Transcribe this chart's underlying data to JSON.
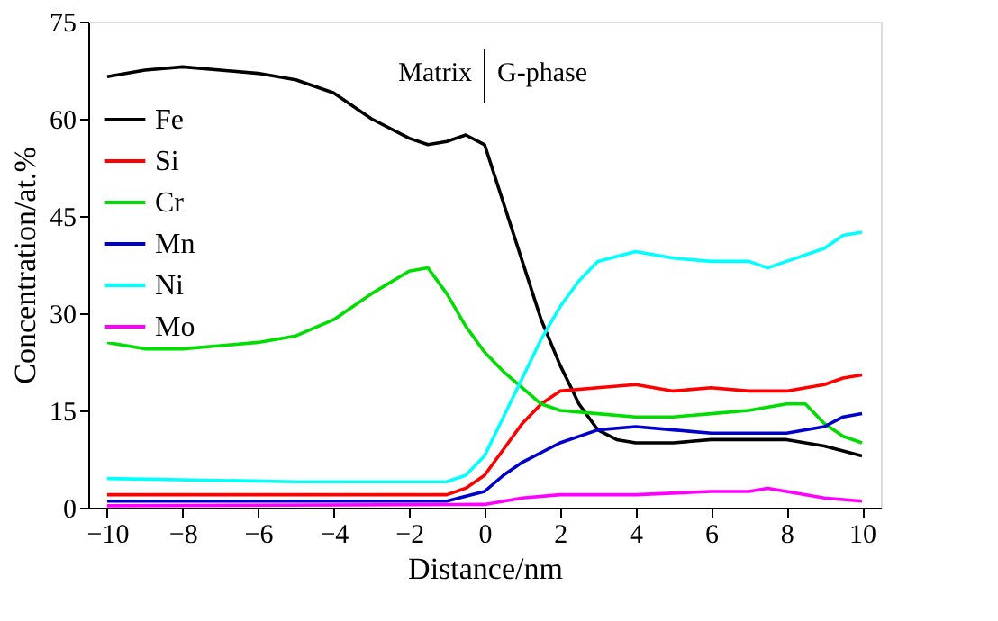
{
  "chart_data": {
    "type": "line",
    "xlabel": "Distance/nm",
    "ylabel": "Concentration/at.%",
    "xlim": [
      -10.5,
      10.5
    ],
    "ylim": [
      0,
      75
    ],
    "xticks": [
      -10,
      -8,
      -6,
      -4,
      -2,
      0,
      2,
      4,
      6,
      8,
      10
    ],
    "yticks": [
      0,
      15,
      30,
      45,
      60,
      75
    ],
    "grid": false,
    "legend": "top left",
    "marker": "none",
    "line_style": "solid",
    "annotations": [
      "Matrix",
      "G-phase"
    ],
    "series": [
      {
        "name": "Fe",
        "color": "#000000",
        "x": [
          -10,
          -9,
          -8,
          -7,
          -6,
          -5,
          -4,
          -3,
          -2,
          -1.5,
          -1,
          -0.5,
          0,
          0.5,
          1,
          1.5,
          2,
          2.5,
          3,
          3.5,
          4,
          5,
          6,
          7,
          8,
          9,
          10
        ],
        "values": [
          66.5,
          67.5,
          68,
          67.5,
          67,
          66,
          64,
          60,
          57,
          56,
          56.5,
          57.5,
          56,
          47,
          38,
          29,
          22,
          16,
          12,
          10.5,
          10,
          10,
          10.5,
          10.5,
          10.5,
          9.5,
          8
        ]
      },
      {
        "name": "Si",
        "color": "#ff0000",
        "x": [
          -10,
          -5,
          -1,
          -0.5,
          0,
          0.5,
          1,
          1.5,
          2,
          3,
          4,
          5,
          6,
          7,
          8,
          9,
          9.5,
          10
        ],
        "values": [
          2,
          2,
          2,
          3,
          5,
          9,
          13,
          16,
          18,
          18.5,
          19,
          18,
          18.5,
          18,
          18,
          19,
          20,
          20.5
        ]
      },
      {
        "name": "Cr",
        "color": "#00dd00",
        "x": [
          -10,
          -9,
          -8,
          -7,
          -6,
          -5,
          -4,
          -3,
          -2,
          -1.5,
          -1,
          -0.5,
          0,
          0.5,
          1,
          1.5,
          2,
          3,
          4,
          5,
          6,
          7,
          8,
          8.5,
          9,
          9.5,
          10
        ],
        "values": [
          25.5,
          24.5,
          24.5,
          25,
          25.5,
          26.5,
          29,
          33,
          36.5,
          37,
          33,
          28,
          24,
          21,
          18.5,
          16,
          15,
          14.5,
          14,
          14,
          14.5,
          15,
          16,
          16,
          13,
          11,
          10
        ]
      },
      {
        "name": "Mn",
        "color": "#0000cc",
        "x": [
          -10,
          -1,
          0,
          0.5,
          1,
          2,
          3,
          4,
          5,
          6,
          7,
          8,
          9,
          9.5,
          10
        ],
        "values": [
          1,
          1,
          2.5,
          5,
          7,
          10,
          12,
          12.5,
          12,
          11.5,
          11.5,
          11.5,
          12.5,
          14,
          14.5
        ]
      },
      {
        "name": "Ni",
        "color": "#00ffff",
        "x": [
          -10,
          -5,
          -1,
          -0.5,
          0,
          0.5,
          1,
          1.5,
          2,
          2.5,
          3,
          4,
          5,
          6,
          7,
          7.5,
          8,
          9,
          9.5,
          10
        ],
        "values": [
          4.5,
          4,
          4,
          5,
          8,
          14,
          20,
          26,
          31,
          35,
          38,
          39.5,
          38.5,
          38,
          38,
          37,
          38,
          40,
          42,
          42.5
        ]
      },
      {
        "name": "Mo",
        "color": "#ff00ff",
        "x": [
          -10,
          0,
          1,
          2,
          4,
          6,
          7,
          7.5,
          8,
          9,
          10
        ],
        "values": [
          0.3,
          0.5,
          1.5,
          2,
          2,
          2.5,
          2.5,
          3,
          2.5,
          1.5,
          1
        ]
      }
    ]
  }
}
